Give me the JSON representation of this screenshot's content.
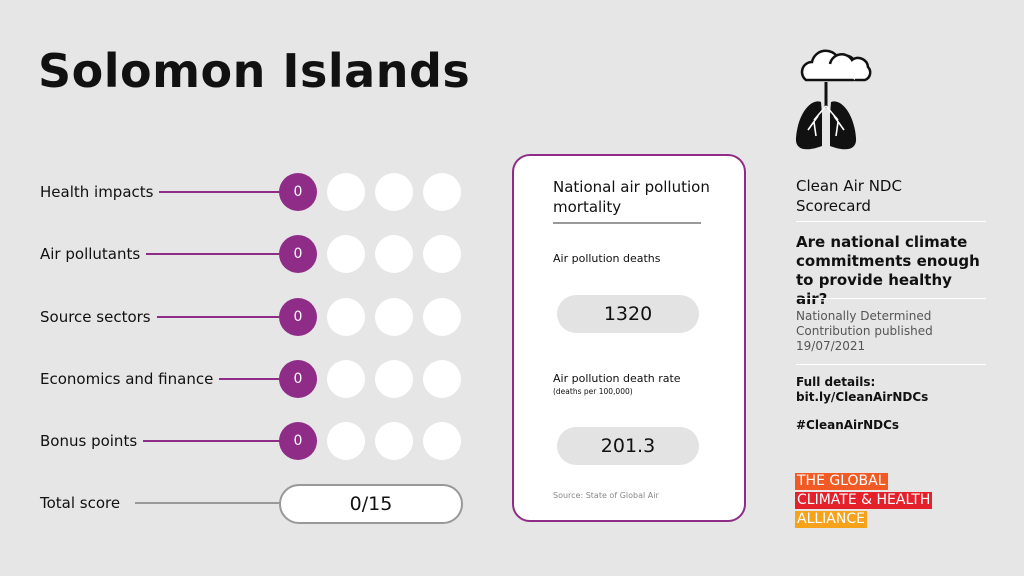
{
  "title": "Solomon Islands",
  "scores": [
    {
      "label": "Health impacts",
      "score": 0
    },
    {
      "label": "Air pollutants",
      "score": 0
    },
    {
      "label": "Source sectors",
      "score": 0
    },
    {
      "label": "Economics and finance",
      "score": 0
    },
    {
      "label": "Bonus points",
      "score": 0
    }
  ],
  "total": {
    "label": "Total score",
    "score": "0/15"
  },
  "mortality": {
    "title": "National air pollution mortality",
    "deaths_label": "Air pollution deaths",
    "deaths": 1320,
    "rate_label": "Air pollution death rate",
    "rate_unit": "(deaths per 100,000)",
    "rate": 201.3,
    "source": "Source: State of Global Air"
  },
  "sidebar": {
    "scorecard": "Clean Air NDC Scorecard",
    "question": "Are national climate commitments enough to provide healthy air?",
    "ndc": "Nationally Determined Contribution published 19/07/2021",
    "details_label": "Full details:",
    "details_link": "bit.ly/CleanAirNDCs",
    "hashtag": "#CleanAirNDCs",
    "logo": [
      "THE GLOBAL",
      "CLIMATE & HEALTH",
      "ALLIANCE"
    ]
  }
}
